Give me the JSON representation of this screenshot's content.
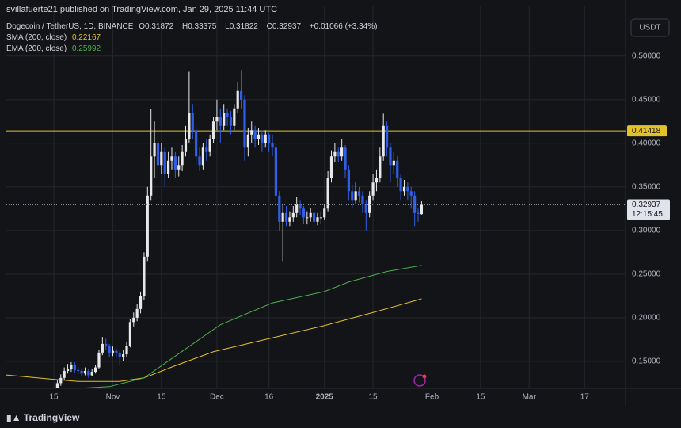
{
  "header": "svillafuerte21 published on TradingView.com, Jan 29, 2025 11:44 UTC",
  "footer": "TradingView",
  "chart_data": {
    "type": "candlestick",
    "symbol": "Dogecoin / TetherUS, 1D, BINANCE",
    "ohlc_letters": {
      "open": "O",
      "high": "H",
      "low": "L",
      "close": "C"
    },
    "change": "+0.01066 (+3.34%)",
    "currency": "USDT",
    "countdown": "12:15:45",
    "up_color": "#e8e8ea",
    "down_color": "#2f5fe8",
    "grid": true,
    "xlim": [
      -13.7,
      164.8
    ],
    "ylim": [
      0.119,
      0.557
    ],
    "xticks": [
      {
        "value": 0,
        "label": "15"
      },
      {
        "value": 17,
        "label": "Nov"
      },
      {
        "value": 31,
        "label": "15"
      },
      {
        "value": 47,
        "label": "Dec"
      },
      {
        "value": 62,
        "label": "16"
      },
      {
        "value": 78,
        "label": "2025"
      },
      {
        "value": 92,
        "label": "15"
      },
      {
        "value": 109,
        "label": "Feb"
      },
      {
        "value": 123,
        "label": "15"
      },
      {
        "value": 137,
        "label": "Mar"
      },
      {
        "value": 153,
        "label": "17"
      }
    ],
    "yticks": [
      {
        "value": 0.15,
        "label": "0.15000"
      },
      {
        "value": 0.2,
        "label": "0.20000"
      },
      {
        "value": 0.25,
        "label": "0.25000"
      },
      {
        "value": 0.3,
        "label": "0.30000"
      },
      {
        "value": 0.35,
        "label": "0.35000"
      },
      {
        "value": 0.4,
        "label": "0.40000"
      },
      {
        "value": 0.45,
        "label": "0.45000"
      },
      {
        "value": 0.5,
        "label": "0.50000"
      }
    ],
    "x": [
      0,
      1,
      2,
      3,
      4,
      5,
      6,
      7,
      8,
      9,
      10,
      11,
      12,
      13,
      14,
      15,
      16,
      17,
      18,
      19,
      20,
      21,
      22,
      23,
      24,
      25,
      26,
      27,
      28,
      29,
      30,
      31,
      32,
      33,
      34,
      35,
      36,
      37,
      38,
      39,
      40,
      41,
      42,
      43,
      44,
      45,
      46,
      47,
      48,
      49,
      50,
      51,
      52,
      53,
      54,
      55,
      56,
      57,
      58,
      59,
      60,
      61,
      62,
      63,
      64,
      65,
      66,
      67,
      68,
      69,
      70,
      71,
      72,
      73,
      74,
      75,
      76,
      77,
      78,
      79,
      80,
      81,
      82,
      83,
      84,
      85,
      86,
      87,
      88,
      89,
      90,
      91,
      92,
      93,
      94,
      95,
      96,
      97,
      98,
      99,
      100,
      101,
      102,
      103,
      104,
      105,
      106
    ],
    "open": [
      0.112,
      0.117,
      0.125,
      0.131,
      0.139,
      0.141,
      0.146,
      0.14,
      0.139,
      0.136,
      0.139,
      0.134,
      0.138,
      0.143,
      0.16,
      0.17,
      0.168,
      0.16,
      0.162,
      0.16,
      0.155,
      0.158,
      0.168,
      0.195,
      0.2,
      0.21,
      0.225,
      0.27,
      0.34,
      0.385,
      0.4,
      0.375,
      0.39,
      0.365,
      0.38,
      0.385,
      0.37,
      0.375,
      0.39,
      0.405,
      0.435,
      0.415,
      0.385,
      0.375,
      0.395,
      0.39,
      0.405,
      0.425,
      0.43,
      0.42,
      0.435,
      0.43,
      0.42,
      0.44,
      0.46,
      0.45,
      0.395,
      0.41,
      0.415,
      0.405,
      0.41,
      0.4,
      0.41,
      0.4,
      0.395,
      0.34,
      0.31,
      0.32,
      0.31,
      0.315,
      0.32,
      0.33,
      0.325,
      0.315,
      0.315,
      0.32,
      0.31,
      0.315,
      0.315,
      0.325,
      0.36,
      0.385,
      0.39,
      0.385,
      0.395,
      0.37,
      0.345,
      0.335,
      0.345,
      0.34,
      0.33,
      0.32,
      0.34,
      0.355,
      0.36,
      0.385,
      0.42,
      0.395,
      0.375,
      0.38,
      0.36,
      0.345,
      0.35,
      0.345,
      0.34,
      0.32,
      0.31872
    ],
    "high": [
      0.12,
      0.128,
      0.135,
      0.143,
      0.147,
      0.149,
      0.149,
      0.143,
      0.142,
      0.143,
      0.141,
      0.141,
      0.146,
      0.163,
      0.178,
      0.176,
      0.17,
      0.167,
      0.165,
      0.162,
      0.163,
      0.172,
      0.199,
      0.206,
      0.216,
      0.23,
      0.275,
      0.35,
      0.439,
      0.425,
      0.41,
      0.4,
      0.395,
      0.39,
      0.395,
      0.39,
      0.385,
      0.398,
      0.42,
      0.482,
      0.445,
      0.42,
      0.395,
      0.4,
      0.405,
      0.41,
      0.43,
      0.45,
      0.44,
      0.445,
      0.44,
      0.437,
      0.445,
      0.47,
      0.484,
      0.455,
      0.418,
      0.425,
      0.42,
      0.418,
      0.415,
      0.415,
      0.412,
      0.41,
      0.4,
      0.345,
      0.33,
      0.328,
      0.322,
      0.328,
      0.338,
      0.335,
      0.328,
      0.322,
      0.326,
      0.323,
      0.32,
      0.322,
      0.33,
      0.368,
      0.392,
      0.4,
      0.395,
      0.405,
      0.398,
      0.375,
      0.352,
      0.355,
      0.35,
      0.345,
      0.335,
      0.345,
      0.365,
      0.37,
      0.395,
      0.434,
      0.425,
      0.4,
      0.39,
      0.385,
      0.365,
      0.358,
      0.355,
      0.35,
      0.345,
      0.325,
      0.33375
    ],
    "low": [
      0.11,
      0.115,
      0.122,
      0.129,
      0.136,
      0.138,
      0.137,
      0.135,
      0.133,
      0.134,
      0.131,
      0.133,
      0.136,
      0.141,
      0.157,
      0.163,
      0.155,
      0.156,
      0.154,
      0.145,
      0.15,
      0.155,
      0.166,
      0.19,
      0.196,
      0.205,
      0.22,
      0.265,
      0.335,
      0.36,
      0.36,
      0.365,
      0.35,
      0.36,
      0.37,
      0.36,
      0.362,
      0.368,
      0.385,
      0.4,
      0.405,
      0.375,
      0.368,
      0.37,
      0.38,
      0.385,
      0.4,
      0.415,
      0.4,
      0.415,
      0.42,
      0.41,
      0.415,
      0.435,
      0.44,
      0.38,
      0.385,
      0.4,
      0.395,
      0.398,
      0.39,
      0.395,
      0.39,
      0.385,
      0.33,
      0.3,
      0.265,
      0.305,
      0.305,
      0.31,
      0.315,
      0.318,
      0.308,
      0.307,
      0.31,
      0.305,
      0.306,
      0.308,
      0.312,
      0.322,
      0.355,
      0.378,
      0.378,
      0.38,
      0.36,
      0.335,
      0.325,
      0.33,
      0.332,
      0.32,
      0.3,
      0.315,
      0.335,
      0.345,
      0.355,
      0.38,
      0.385,
      0.355,
      0.365,
      0.35,
      0.335,
      0.34,
      0.335,
      0.325,
      0.305,
      0.31,
      0.31822
    ],
    "close": [
      0.117,
      0.125,
      0.131,
      0.139,
      0.141,
      0.146,
      0.14,
      0.139,
      0.136,
      0.139,
      0.134,
      0.138,
      0.143,
      0.16,
      0.17,
      0.168,
      0.16,
      0.162,
      0.16,
      0.155,
      0.158,
      0.168,
      0.195,
      0.2,
      0.21,
      0.225,
      0.27,
      0.34,
      0.385,
      0.4,
      0.375,
      0.39,
      0.365,
      0.38,
      0.385,
      0.37,
      0.375,
      0.39,
      0.405,
      0.435,
      0.415,
      0.385,
      0.375,
      0.395,
      0.39,
      0.405,
      0.425,
      0.43,
      0.42,
      0.435,
      0.43,
      0.42,
      0.44,
      0.46,
      0.45,
      0.395,
      0.41,
      0.415,
      0.405,
      0.41,
      0.4,
      0.41,
      0.4,
      0.395,
      0.34,
      0.31,
      0.32,
      0.31,
      0.315,
      0.32,
      0.33,
      0.325,
      0.315,
      0.315,
      0.32,
      0.31,
      0.315,
      0.315,
      0.325,
      0.36,
      0.385,
      0.39,
      0.385,
      0.395,
      0.37,
      0.345,
      0.335,
      0.345,
      0.34,
      0.33,
      0.32,
      0.34,
      0.355,
      0.36,
      0.385,
      0.42,
      0.395,
      0.375,
      0.38,
      0.36,
      0.345,
      0.35,
      0.345,
      0.34,
      0.32,
      0.319,
      0.32937
    ],
    "lines": [
      {
        "name": "SMA (200, close)",
        "color": "#e3c12b",
        "x": [
          -14,
          -2,
          7,
          19,
          26,
          35,
          46,
          62,
          78,
          92,
          106
        ],
        "values": [
          0.1345,
          0.13,
          0.127,
          0.127,
          0.131,
          0.145,
          0.161,
          0.176,
          0.191,
          0.206,
          0.22167
        ]
      },
      {
        "name": "EMA (200, close)",
        "color": "#4caf50",
        "x": [
          7,
          16,
          26,
          35,
          48,
          63,
          78,
          85,
          96,
          106
        ],
        "values": [
          0.119,
          0.121,
          0.131,
          0.156,
          0.192,
          0.217,
          0.23,
          0.241,
          0.253,
          0.25992
        ]
      }
    ],
    "level": {
      "value": 0.41418,
      "color": "#e3c12b"
    }
  }
}
